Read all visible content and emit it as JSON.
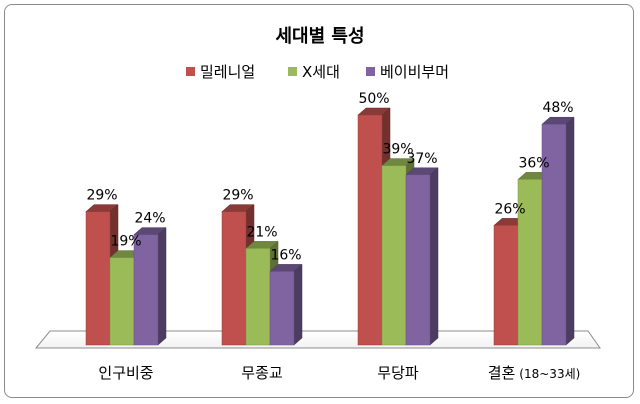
{
  "chart_data": {
    "type": "bar",
    "title": "세대별 특성",
    "categories": [
      "인구비중",
      "무종교",
      "무당파",
      "결혼"
    ],
    "category_suffix": [
      "",
      "",
      "",
      "(18~33세)"
    ],
    "series": [
      {
        "name": "밀레니얼",
        "values": [
          29,
          29,
          50,
          26
        ],
        "color": "#c0504d"
      },
      {
        "name": "X세대",
        "values": [
          19,
          21,
          39,
          36
        ],
        "color": "#9bbb59"
      },
      {
        "name": "베이비부머",
        "values": [
          24,
          16,
          37,
          48
        ],
        "color": "#8064a2"
      }
    ],
    "value_suffix": "%",
    "ylim": [
      0,
      55
    ],
    "legend_position": "top",
    "grid": false,
    "style": "3d-bar"
  }
}
